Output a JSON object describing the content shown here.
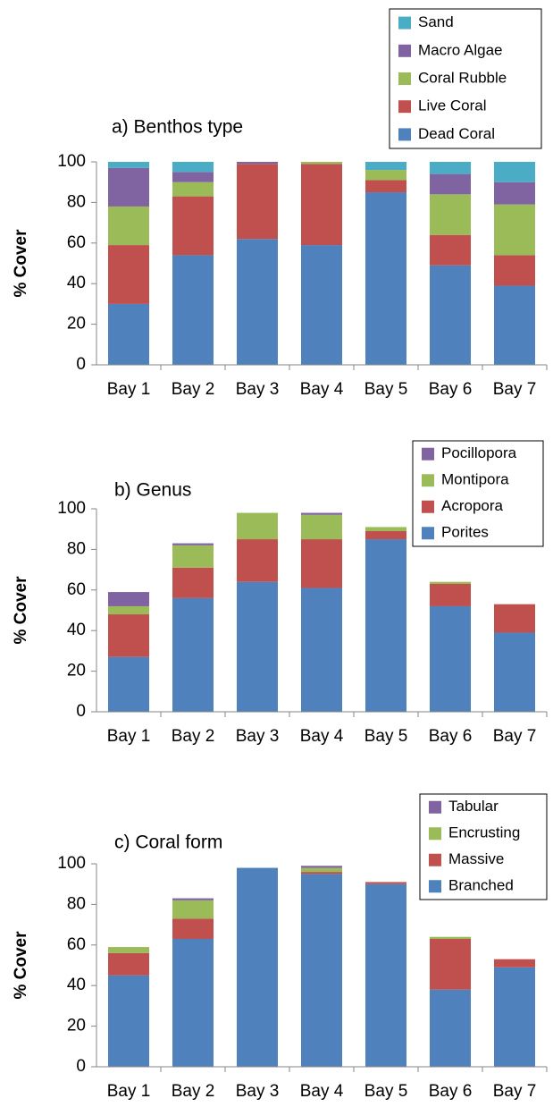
{
  "chart_data": [
    {
      "type": "bar",
      "stacked": true,
      "title": "a) Benthos type",
      "y_label": "% Cover",
      "categories": [
        "Bay 1",
        "Bay 2",
        "Bay 3",
        "Bay 4",
        "Bay 5",
        "Bay 6",
        "Bay 7"
      ],
      "series": [
        {
          "name": "Dead Coral",
          "color": "#4f81bd",
          "values": [
            30,
            54,
            62,
            59,
            85,
            49,
            39
          ]
        },
        {
          "name": "Live Coral",
          "color": "#c0504d",
          "values": [
            29,
            29,
            37,
            40,
            6,
            15,
            15
          ]
        },
        {
          "name": "Coral Rubble",
          "color": "#9bbb59",
          "values": [
            19,
            7,
            0,
            1,
            5,
            20,
            25
          ]
        },
        {
          "name": "Macro Algae",
          "color": "#8064a2",
          "values": [
            19,
            5,
            1,
            0,
            0,
            10,
            11
          ]
        },
        {
          "name": "Sand",
          "color": "#4bacc6",
          "values": [
            3,
            5,
            0,
            0,
            4,
            6,
            10
          ]
        }
      ],
      "ylim": [
        0,
        100
      ],
      "yticks": [
        0,
        20,
        40,
        60,
        80,
        100
      ],
      "legend": "top-right"
    },
    {
      "type": "bar",
      "stacked": true,
      "title": "b) Genus",
      "y_label": "% Cover",
      "categories": [
        "Bay 1",
        "Bay 2",
        "Bay 3",
        "Bay 4",
        "Bay 5",
        "Bay 6",
        "Bay 7"
      ],
      "series": [
        {
          "name": "Porites",
          "color": "#4f81bd",
          "values": [
            27,
            56,
            64,
            61,
            85,
            52,
            39
          ]
        },
        {
          "name": "Acropora",
          "color": "#c0504d",
          "values": [
            21,
            15,
            21,
            24,
            4,
            11,
            14
          ]
        },
        {
          "name": "Montipora",
          "color": "#9bbb59",
          "values": [
            4,
            11,
            13,
            12,
            2,
            1,
            0
          ]
        },
        {
          "name": "Pocillopora",
          "color": "#8064a2",
          "values": [
            7,
            1,
            0,
            1,
            0,
            0,
            0
          ]
        }
      ],
      "ylim": [
        0,
        100
      ],
      "yticks": [
        0,
        20,
        40,
        60,
        80,
        100
      ],
      "legend": "top-right"
    },
    {
      "type": "bar",
      "stacked": true,
      "title": "c) Coral form",
      "y_label": "% Cover",
      "categories": [
        "Bay 1",
        "Bay 2",
        "Bay 3",
        "Bay 4",
        "Bay 5",
        "Bay 6",
        "Bay 7"
      ],
      "series": [
        {
          "name": "Branched",
          "color": "#4f81bd",
          "values": [
            45,
            63,
            98,
            95,
            90,
            38,
            49
          ]
        },
        {
          "name": "Massive",
          "color": "#c0504d",
          "values": [
            11,
            10,
            0,
            1,
            1,
            25,
            4
          ]
        },
        {
          "name": "Encrusting",
          "color": "#9bbb59",
          "values": [
            3,
            9,
            0,
            2,
            0,
            1,
            0
          ]
        },
        {
          "name": "Tabular",
          "color": "#8064a2",
          "values": [
            0,
            1,
            0,
            1,
            0,
            0,
            0
          ]
        }
      ],
      "ylim": [
        0,
        100
      ],
      "yticks": [
        0,
        20,
        40,
        60,
        80,
        100
      ],
      "legend": "top-right"
    }
  ]
}
